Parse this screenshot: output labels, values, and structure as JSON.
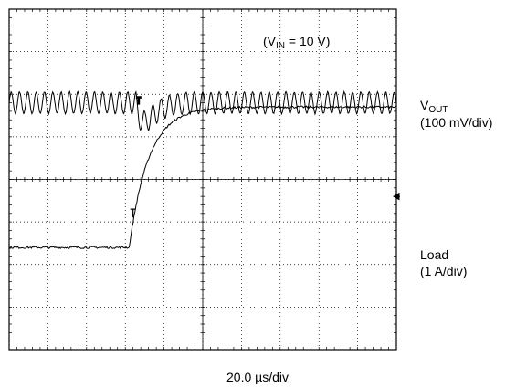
{
  "chart_data": {
    "type": "line",
    "annotation": {
      "prefix": "(V",
      "sub": "IN",
      "suffix": " = 10 V)"
    },
    "xlabel": "20.0 µs/div",
    "grid": true,
    "divisions": {
      "x": 10,
      "y": 8
    },
    "xlim": [
      0,
      200
    ],
    "x_unit": "µs",
    "series": [
      {
        "channel_label": {
          "main": "V",
          "sub": "OUT"
        },
        "scale_label": "(100 mV/div)",
        "trace": "ripple",
        "ripple_period_us": 4.3,
        "ripple_pp_mV": 50,
        "level_div": 5.8,
        "step_time_us": 65.5,
        "undershoot_mV": 45
      },
      {
        "channel_label": {
          "main": "Load",
          "sub": ""
        },
        "scale_label": "(1 A/div)",
        "trace": "step",
        "step_time_us": 62,
        "initial_div": 2.4,
        "final_div": 5.7,
        "rise_time_us": 40
      }
    ]
  }
}
